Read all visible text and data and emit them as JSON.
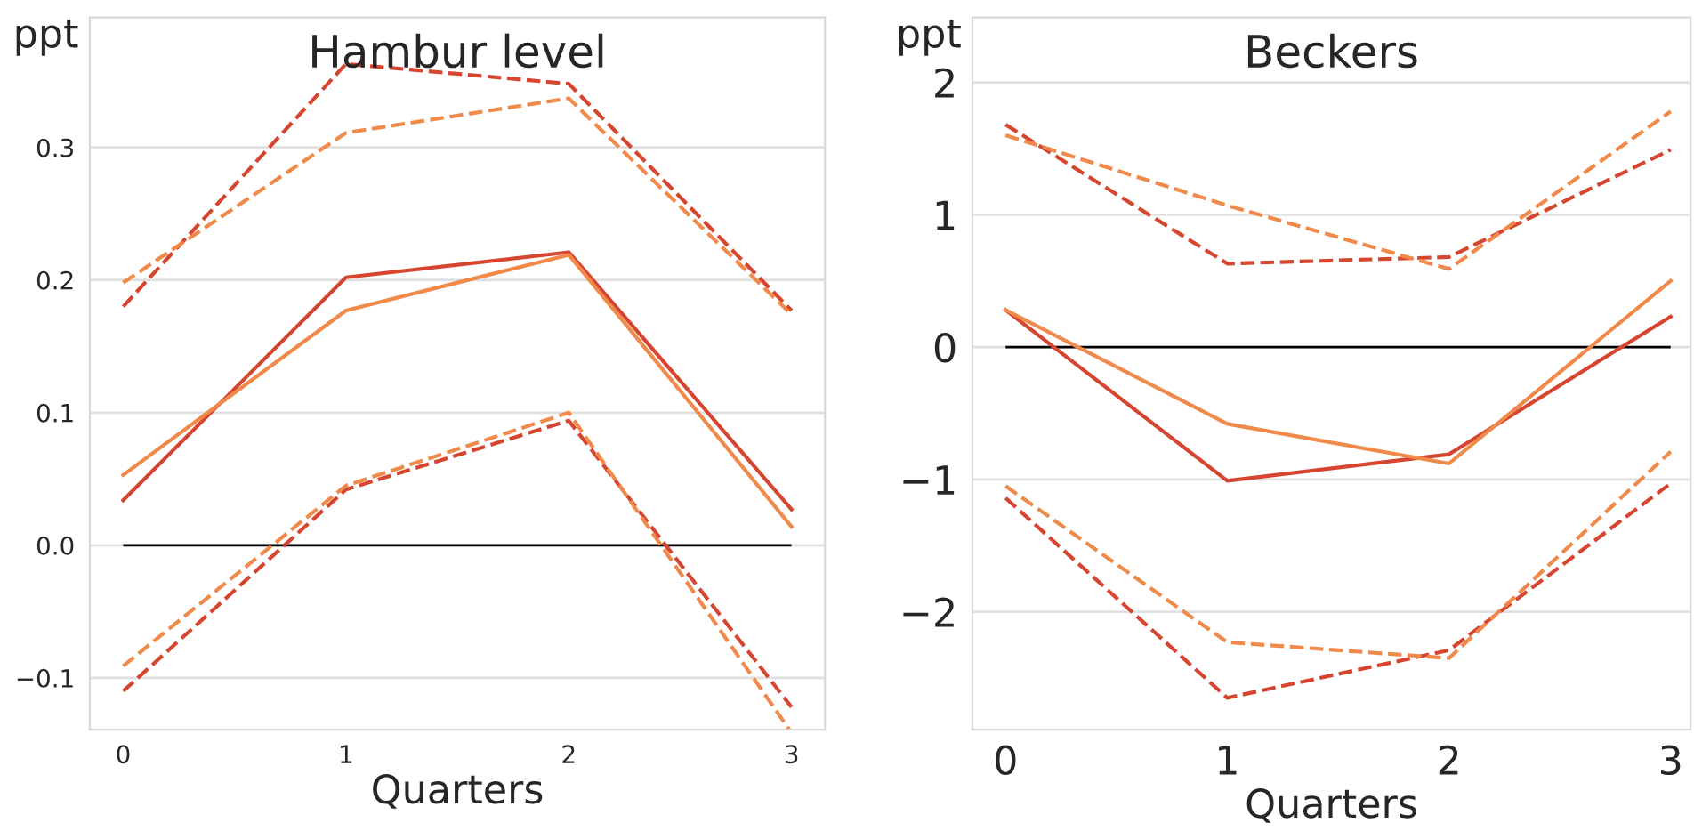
{
  "chart_data": [
    {
      "type": "line",
      "title": "Hambur level",
      "xlabel": "Quarters",
      "ylabel": "ppt",
      "x": [
        0,
        1,
        2,
        3
      ],
      "xlim": [
        -0.15,
        3.15
      ],
      "xticks": [
        0,
        1,
        2,
        3
      ],
      "ylim": [
        -0.139,
        0.398
      ],
      "yticks": [
        {
          "value": -0.1,
          "label": "−0.1"
        },
        {
          "value": 0.0,
          "label": "0.0"
        },
        {
          "value": 0.1,
          "label": "0.1"
        },
        {
          "value": 0.2,
          "label": "0.2"
        },
        {
          "value": 0.3,
          "label": "0.3"
        }
      ],
      "grid": "y",
      "ref_lines": [
        {
          "axis": "y",
          "value": 0,
          "color": "#000000",
          "line_style": "solid"
        }
      ],
      "series": [
        {
          "color": "#d6452f",
          "line_style": "solid",
          "values": [
            0.034,
            0.202,
            0.221,
            0.027
          ]
        },
        {
          "color": "#f08a4b",
          "line_style": "solid",
          "values": [
            0.053,
            0.177,
            0.219,
            0.014
          ]
        },
        {
          "color": "#d6452f",
          "line_style": "dashed",
          "values": [
            0.18,
            0.363,
            0.348,
            0.177
          ]
        },
        {
          "color": "#f08a4b",
          "line_style": "dashed",
          "values": [
            0.198,
            0.311,
            0.337,
            0.174
          ]
        },
        {
          "color": "#d6452f",
          "line_style": "dashed",
          "values": [
            -0.11,
            0.042,
            0.094,
            -0.122
          ]
        },
        {
          "color": "#f08a4b",
          "line_style": "dashed",
          "x": [
            0,
            1,
            2,
            2.99
          ],
          "values": [
            -0.091,
            0.045,
            0.1,
            -0.139
          ]
        }
      ]
    },
    {
      "type": "line",
      "title": "Beckers",
      "xlabel": "Quarters",
      "ylabel": "ppt",
      "x": [
        0,
        1,
        2,
        3
      ],
      "xlim": [
        -0.15,
        3.09
      ],
      "xticks": [
        0,
        1,
        2,
        3
      ],
      "ylim": [
        -2.89,
        2.49
      ],
      "yticks": [
        {
          "value": -2,
          "label": "−2"
        },
        {
          "value": -1,
          "label": "−1"
        },
        0,
        1,
        2
      ],
      "grid": "y",
      "ref_lines": [
        {
          "axis": "y",
          "value": 0,
          "color": "#000000",
          "line_style": "solid"
        }
      ],
      "series": [
        {
          "color": "#d6452f",
          "line_style": "solid",
          "values": [
            0.28,
            -1.01,
            -0.81,
            0.23
          ]
        },
        {
          "color": "#f08a4b",
          "line_style": "solid",
          "values": [
            0.28,
            -0.58,
            -0.88,
            0.5
          ]
        },
        {
          "color": "#d6452f",
          "line_style": "dashed",
          "values": [
            1.68,
            0.63,
            0.68,
            1.49
          ]
        },
        {
          "color": "#f08a4b",
          "line_style": "dashed",
          "values": [
            1.6,
            1.07,
            0.59,
            1.78
          ]
        },
        {
          "color": "#d6452f",
          "line_style": "dashed",
          "values": [
            -1.14,
            -2.65,
            -2.29,
            -1.03
          ]
        },
        {
          "color": "#f08a4b",
          "line_style": "dashed",
          "values": [
            -1.05,
            -2.23,
            -2.35,
            -0.79
          ]
        }
      ]
    }
  ]
}
